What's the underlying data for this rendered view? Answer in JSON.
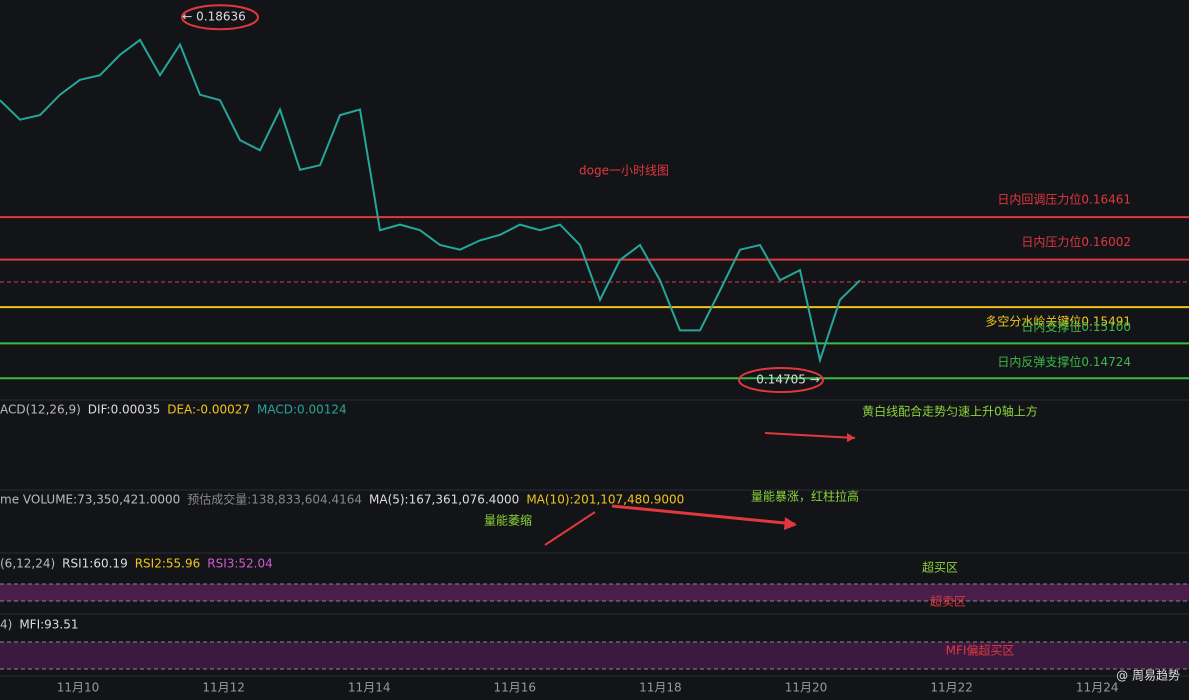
{
  "chart_data": {
    "type": "line",
    "title": "doge一小时线图",
    "values": [
      0.1772,
      0.1751,
      0.1756,
      0.1778,
      0.1794,
      0.1799,
      0.1821,
      0.1837,
      0.1799,
      0.1832,
      0.1778,
      0.1772,
      0.1729,
      0.1718,
      0.1762,
      0.1697,
      0.1702,
      0.1756,
      0.1762,
      0.1632,
      0.1638,
      0.1632,
      0.1616,
      0.1611,
      0.1621,
      0.1627,
      0.1638,
      0.1632,
      0.1638,
      0.1616,
      0.1557,
      0.16,
      0.1616,
      0.1578,
      0.1524,
      0.1524,
      0.1567,
      0.1611,
      0.1616,
      0.1578,
      0.1589,
      0.1492,
      0.1557,
      0.1578
    ],
    "color": "#26a69a",
    "ylim": [
      0.1449,
      0.188
    ],
    "x_labels": [
      "11月10",
      "11月12",
      "11月14",
      "11月16",
      "11月18",
      "11月20",
      "11月22",
      "11月24"
    ],
    "levels": [
      {
        "value": 0.16461,
        "label": "日内回调压力位0.16461",
        "color": "#e0383e"
      },
      {
        "value": 0.16002,
        "label": "日内压力位0.16002",
        "color": "#e0383e"
      },
      {
        "value": 0.15491,
        "label": "多空分水岭关键位0.15491",
        "color": "#f0c419"
      },
      {
        "value": 0.151,
        "label": "日内支撑位0.15100",
        "color": "#3cb94a"
      },
      {
        "value": 0.14724,
        "label": "日内反弹支撑位0.14724",
        "color": "#3cb94a"
      }
    ],
    "high": {
      "value": 0.18636,
      "label": "← 0.18636"
    },
    "low": {
      "value": 0.14705,
      "label": "0.14705 →"
    },
    "macd_header": [
      "ACD(12,26,9)",
      "DIF:0.00035",
      "DEA:-0.00027",
      "MACD:0.00124"
    ],
    "macd_note": "黄白线配合走势匀速上升0轴上方",
    "volume_header": [
      "me VOLUME:73,350,421.0000",
      "预估成交量:138,833,604.4164",
      "MA(5):167,361,076.4000",
      "MA(10):201,107,480.9000"
    ],
    "volume_notes": [
      "量能暴涨，红柱拉高",
      "量能萎缩"
    ],
    "rsi_header": [
      "(6,12,24)",
      "RSI1:60.19",
      "RSI2:55.96",
      "RSI3:52.04"
    ],
    "rsi_notes": [
      "超买区",
      "超卖区"
    ],
    "mfi_header": [
      "4)",
      "MFI:93.51"
    ],
    "mfi_note": "MFI偏超买区",
    "watermark": "@ 周易趋势"
  }
}
